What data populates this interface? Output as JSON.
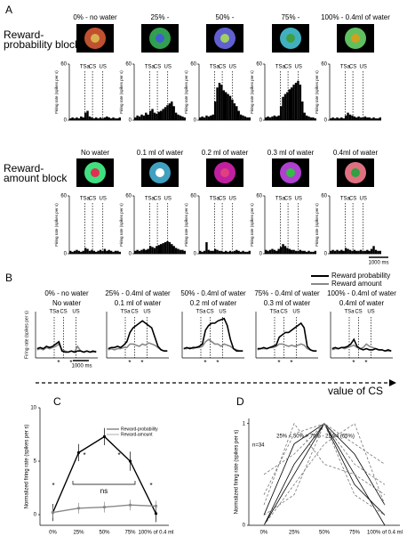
{
  "panel_a": {
    "label": "A",
    "events": [
      "TSa",
      "CS",
      "US"
    ],
    "scale_bar": "1000 ms",
    "rows": [
      {
        "block_label": [
          "Reward-",
          "probability block"
        ],
        "ylim": [
          0,
          60
        ],
        "yticks": [
          0,
          60
        ],
        "y_label": "Firing rate (spikes per s)",
        "conditions": [
          {
            "label": "0% - no water",
            "values": [
              2,
              3,
              2,
              3,
              2,
              4,
              3,
              8,
              10,
              4,
              3,
              2,
              3,
              2,
              3,
              2,
              3,
              4,
              3,
              2,
              3,
              2,
              2,
              3
            ]
          },
          {
            "label": "25% -",
            "values": [
              3,
              5,
              4,
              6,
              5,
              8,
              6,
              10,
              12,
              8,
              7,
              9,
              10,
              12,
              14,
              16,
              18,
              20,
              15,
              8,
              6,
              5,
              4,
              3
            ]
          },
          {
            "label": "50% -",
            "values": [
              3,
              4,
              3,
              5,
              4,
              5,
              6,
              20,
              35,
              40,
              38,
              32,
              30,
              28,
              26,
              22,
              18,
              15,
              10,
              6,
              5,
              4,
              3,
              3
            ]
          },
          {
            "label": "75% -",
            "values": [
              3,
              4,
              3,
              4,
              5,
              4,
              5,
              15,
              25,
              28,
              30,
              33,
              35,
              38,
              40,
              42,
              38,
              20,
              8,
              5,
              4,
              3,
              3,
              2
            ]
          },
          {
            "label": "100% - 0.4ml of water",
            "values": [
              2,
              3,
              2,
              3,
              2,
              3,
              2,
              5,
              8,
              6,
              5,
              4,
              3,
              4,
              3,
              3,
              4,
              3,
              3,
              2,
              3,
              2,
              2,
              3
            ]
          }
        ]
      },
      {
        "block_label": [
          "Reward-",
          "amount block"
        ],
        "ylim": [
          0,
          60
        ],
        "yticks": [
          0,
          60
        ],
        "y_label": "Firing rate (spikes per s)",
        "conditions": [
          {
            "label": "No water",
            "values": [
              3,
              2,
              3,
              4,
              3,
              2,
              3,
              6,
              5,
              3,
              4,
              3,
              2,
              3,
              4,
              3,
              5,
              3,
              4,
              3,
              2,
              3,
              3,
              2
            ]
          },
          {
            "label": "0.1 ml of water",
            "values": [
              3,
              4,
              3,
              4,
              5,
              4,
              5,
              8,
              7,
              6,
              8,
              9,
              10,
              11,
              12,
              13,
              12,
              10,
              8,
              6,
              5,
              4,
              4,
              3
            ]
          },
          {
            "label": "0.2 ml of water",
            "values": [
              3,
              2,
              3,
              12,
              4,
              3,
              3,
              5,
              4,
              3,
              3,
              2,
              3,
              2,
              3,
              2,
              3,
              4,
              3,
              2,
              3,
              2,
              2,
              3
            ]
          },
          {
            "label": "0.3 ml of water",
            "values": [
              4,
              3,
              4,
              5,
              4,
              3,
              5,
              7,
              10,
              8,
              6,
              5,
              4,
              4,
              3,
              3,
              4,
              3,
              3,
              2,
              3,
              2,
              2,
              3
            ]
          },
          {
            "label": "0.4ml of water",
            "values": [
              3,
              4,
              3,
              4,
              3,
              4,
              3,
              6,
              5,
              4,
              3,
              4,
              3,
              3,
              4,
              3,
              3,
              4,
              3,
              5,
              8,
              4,
              3,
              3
            ]
          }
        ]
      }
    ]
  },
  "panel_b": {
    "label": "B",
    "events": [
      "TSa",
      "CS",
      "US"
    ],
    "scale_bar": "1000 ms",
    "ylim": [
      0,
      40
    ],
    "y_label": "Firing rate (spikes per s)",
    "legend": [
      {
        "name": "Reward probability",
        "color": "#000000"
      },
      {
        "name": "Reward amount",
        "color": "#888888"
      }
    ],
    "plots": [
      {
        "labels": [
          "0% - no water",
          "No water"
        ],
        "probability": [
          8,
          9,
          8,
          10,
          9,
          10,
          12,
          14,
          6,
          5,
          5,
          6,
          5,
          6,
          6,
          5,
          6,
          5,
          6,
          5
        ],
        "amount": [
          7,
          8,
          7,
          9,
          8,
          9,
          10,
          12,
          7,
          6,
          5,
          6,
          5,
          10,
          6,
          5,
          6,
          5,
          5,
          6
        ],
        "stars": [
          {
            "text": "*",
            "color": "#000000"
          },
          {
            "text": "*",
            "color": "#999999"
          }
        ]
      },
      {
        "labels": [
          "25% - 0.4ml of water",
          "0.1 ml of water"
        ],
        "probability": [
          8,
          9,
          9,
          10,
          9,
          11,
          14,
          22,
          26,
          28,
          30,
          32,
          30,
          28,
          26,
          18,
          10,
          7,
          6,
          6
        ],
        "amount": [
          7,
          8,
          7,
          8,
          8,
          9,
          9,
          12,
          12,
          11,
          10,
          12,
          11,
          13,
          12,
          11,
          9,
          7,
          6,
          6
        ],
        "stars": [
          {
            "text": "*",
            "color": "#000000"
          },
          {
            "text": "*",
            "color": "#000000"
          }
        ]
      },
      {
        "labels": [
          "50% - 0.4ml of water",
          "0.2 ml of water"
        ],
        "probability": [
          8,
          9,
          8,
          9,
          9,
          10,
          12,
          24,
          28,
          30,
          30,
          32,
          33,
          34,
          28,
          16,
          8,
          6,
          6,
          6
        ],
        "amount": [
          8,
          8,
          9,
          8,
          9,
          9,
          10,
          14,
          16,
          14,
          12,
          12,
          10,
          12,
          11,
          10,
          8,
          7,
          6,
          6
        ],
        "stars": [
          {
            "text": "*",
            "color": "#000000"
          },
          {
            "text": "*",
            "color": "#000000"
          }
        ]
      },
      {
        "labels": [
          "75% - 0.4ml of water",
          "0.3 ml of water"
        ],
        "probability": [
          8,
          8,
          9,
          8,
          9,
          10,
          11,
          18,
          20,
          22,
          22,
          24,
          26,
          28,
          30,
          26,
          10,
          7,
          6,
          6
        ],
        "amount": [
          7,
          8,
          8,
          8,
          9,
          9,
          10,
          12,
          12,
          11,
          10,
          11,
          10,
          11,
          12,
          11,
          8,
          7,
          6,
          6
        ],
        "stars": [
          {
            "text": "*",
            "color": "#000000"
          },
          {
            "text": "*",
            "color": "#000000"
          }
        ]
      },
      {
        "labels": [
          "100% - 0.4ml of water",
          "0.4ml of water"
        ],
        "probability": [
          8,
          9,
          8,
          9,
          9,
          10,
          12,
          16,
          10,
          8,
          7,
          8,
          7,
          7,
          8,
          7,
          7,
          6,
          7,
          6
        ],
        "amount": [
          7,
          8,
          8,
          9,
          8,
          9,
          10,
          11,
          9,
          8,
          9,
          12,
          10,
          9,
          8,
          7,
          7,
          6,
          6,
          6
        ],
        "stars": [
          {
            "text": "*",
            "color": "#000000"
          },
          {
            "text": "*",
            "color": "#999999"
          }
        ]
      }
    ]
  },
  "arrow_label": "value of CS",
  "panel_c": {
    "label": "C",
    "type": "line",
    "categories": [
      "0%",
      "25%",
      "50%",
      "75%",
      "100% of 0.4 ml"
    ],
    "ylim": [
      -1,
      10
    ],
    "yticks": [
      0,
      5,
      10
    ],
    "y_label": "Normalized firing rate (spikes per s)",
    "series": [
      {
        "name": "Reward-probability",
        "color": "#000000",
        "values": [
          0.2,
          5.8,
          7.3,
          5,
          0.1
        ],
        "errors": [
          0.8,
          0.8,
          0.8,
          0.9,
          0.8
        ]
      },
      {
        "name": "Reward-amount",
        "color": "#888888",
        "values": [
          0.2,
          0.6,
          0.7,
          0.9,
          0.8
        ],
        "errors": [
          0.5,
          0.5,
          0.5,
          0.5,
          0.5
        ]
      }
    ],
    "annotations": [
      "*",
      "*",
      "*",
      "*",
      "ns"
    ]
  },
  "panel_d": {
    "label": "D",
    "type": "line",
    "title": "25% < 50% > 75% - 22/34 (65%)",
    "n_label": "n=34",
    "categories": [
      "0%",
      "25%",
      "50%",
      "75%",
      "100% of 0.4 ml"
    ],
    "ylim": [
      0,
      1.05
    ],
    "yticks": [
      0,
      1
    ],
    "y_label": "Normalized firing rate (spikes per s)",
    "series": [
      {
        "color": "#000000",
        "dashed": false,
        "values": [
          0,
          0.6,
          1,
          0.4,
          0.1
        ]
      },
      {
        "color": "#000000",
        "dashed": false,
        "values": [
          0.1,
          0.8,
          1,
          0.5,
          0
        ]
      },
      {
        "color": "#000000",
        "dashed": false,
        "values": [
          0,
          0.5,
          1,
          0.7,
          0.2
        ]
      },
      {
        "color": "#777777",
        "dashed": true,
        "values": [
          0.3,
          0.9,
          1,
          0.3,
          0.1
        ]
      },
      {
        "color": "#777777",
        "dashed": true,
        "values": [
          0.2,
          1,
          0.6,
          0.5,
          0.3
        ]
      },
      {
        "color": "#777777",
        "dashed": true,
        "values": [
          0,
          0.4,
          0.8,
          1,
          0.2
        ]
      },
      {
        "color": "#777777",
        "dashed": true,
        "values": [
          0.5,
          0.7,
          1,
          0.6,
          0.4
        ]
      },
      {
        "color": "#777777",
        "dashed": true,
        "values": [
          0.1,
          0.3,
          1,
          0.8,
          0.6
        ]
      }
    ]
  }
}
